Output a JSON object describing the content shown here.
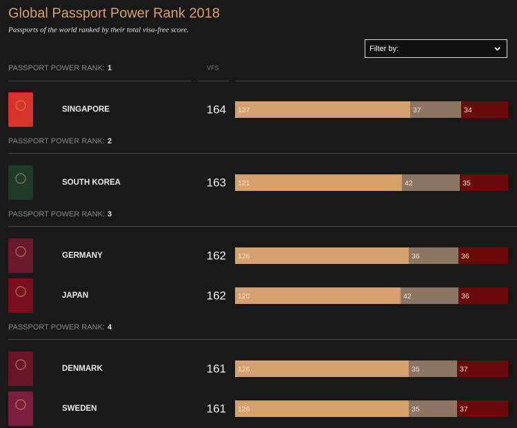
{
  "header": {
    "title": "Global Passport Power Rank 2018",
    "subtitle": "Passports of the world ranked by their total visa-free score."
  },
  "filter": {
    "label": "Filter by:"
  },
  "columns": {
    "vfs": "VFS"
  },
  "segment_colors": [
    "#d3a06e",
    "#8c7562",
    "#6b0a0c"
  ],
  "groups": [
    {
      "label": "PASSPORT POWER RANK:",
      "rank": 1,
      "passports": [
        {
          "country": "SINGAPORE",
          "vfs": 164,
          "segments": [
            127,
            37,
            34
          ]
        }
      ]
    },
    {
      "label": "PASSPORT POWER RANK:",
      "rank": 2,
      "passports": [
        {
          "country": "SOUTH KOREA",
          "vfs": 163,
          "segments": [
            121,
            42,
            35
          ]
        }
      ]
    },
    {
      "label": "PASSPORT POWER RANK:",
      "rank": 3,
      "passports": [
        {
          "country": "GERMANY",
          "vfs": 162,
          "segments": [
            126,
            36,
            36
          ]
        },
        {
          "country": "JAPAN",
          "vfs": 162,
          "segments": [
            120,
            42,
            36
          ]
        }
      ]
    },
    {
      "label": "PASSPORT POWER RANK:",
      "rank": 4,
      "passports": [
        {
          "country": "DENMARK",
          "vfs": 161,
          "segments": [
            126,
            35,
            37
          ]
        },
        {
          "country": "SWEDEN",
          "vfs": 161,
          "segments": [
            126,
            35,
            37
          ]
        }
      ]
    }
  ]
}
